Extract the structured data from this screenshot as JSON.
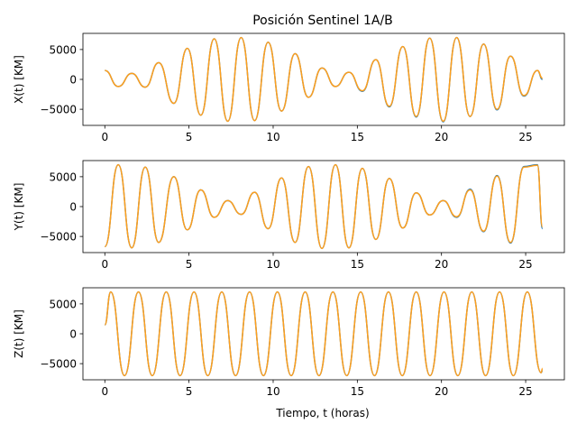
{
  "chart_data": {
    "type": "line",
    "title": "Posición Sentinel 1A/B",
    "xlabel": "Tiempo, t (horas)",
    "colors": {
      "series_a": "#1f77b4",
      "series_b": "#ff9f1c"
    },
    "panels": [
      {
        "ylabel": "X(t) [KM]",
        "xlim": [
          -1.3,
          27.3
        ],
        "ylim": [
          -7700,
          7700
        ],
        "xticks": [
          0,
          5,
          10,
          15,
          20,
          25
        ],
        "yticks": [
          5000,
          0,
          -5000
        ],
        "xtick_labels": [
          "0",
          "5",
          "10",
          "15",
          "20",
          "25"
        ],
        "ytick_labels": [
          "5000",
          "0",
          "−5000"
        ],
        "series": [
          {
            "x": [
              0,
              0.8,
              1.6,
              2.4,
              3.2,
              4.1,
              4.9,
              5.7,
              6.5,
              7.3,
              8.1,
              8.9,
              9.7,
              10.5,
              11.3,
              12.1,
              12.9,
              13.7,
              14.5,
              15.3,
              16.1,
              16.9,
              17.7,
              18.5,
              19.3,
              20.1,
              20.9,
              21.7,
              22.5,
              23.3,
              24.1,
              24.9,
              25.7,
              26.0
            ],
            "y": [
              1500,
              -1200,
              1000,
              -1300,
              2800,
              -4000,
              5200,
              -6000,
              6800,
              -7000,
              7000,
              -6900,
              6200,
              -5300,
              4300,
              -3000,
              1900,
              -1200,
              1200,
              -2000,
              3300,
              -4600,
              5500,
              -6300,
              6900,
              -7100,
              7000,
              -6200,
              5900,
              -5100,
              3900,
              -2800,
              1500,
              0
            ]
          },
          {
            "x": [
              0,
              0.8,
              1.6,
              2.4,
              3.2,
              4.1,
              4.9,
              5.7,
              6.5,
              7.3,
              8.1,
              8.9,
              9.7,
              10.5,
              11.3,
              12.1,
              12.9,
              13.7,
              14.5,
              15.3,
              16.1,
              16.9,
              17.7,
              18.5,
              19.3,
              20.1,
              20.9,
              21.7,
              22.5,
              23.3,
              24.1,
              24.9,
              25.7,
              26.0
            ],
            "y": [
              1500,
              -1200,
              1000,
              -1300,
              2800,
              -4000,
              5200,
              -6000,
              6800,
              -7000,
              7000,
              -6900,
              6200,
              -5300,
              4300,
              -3000,
              1900,
              -1200,
              1200,
              -1900,
              3300,
              -4500,
              5500,
              -6200,
              6900,
              -7000,
              7000,
              -6200,
              5900,
              -5000,
              3900,
              -2700,
              1500,
              200
            ]
          }
        ]
      },
      {
        "ylabel": "Y(t) [KM]",
        "xlim": [
          -1.3,
          27.3
        ],
        "ylim": [
          -7700,
          7700
        ],
        "xticks": [
          0,
          5,
          10,
          15,
          20,
          25
        ],
        "yticks": [
          5000,
          0,
          -5000
        ],
        "xtick_labels": [
          "0",
          "5",
          "10",
          "15",
          "20",
          "25"
        ],
        "ytick_labels": [
          "5000",
          "0",
          "−5000"
        ],
        "series": [
          {
            "x": [
              0,
              0.8,
              1.6,
              2.4,
              3.2,
              4.1,
              4.9,
              5.7,
              6.5,
              7.3,
              8.1,
              8.9,
              9.7,
              10.5,
              11.3,
              12.1,
              12.9,
              13.7,
              14.5,
              15.3,
              16.1,
              16.9,
              17.7,
              18.5,
              19.3,
              20.1,
              20.9,
              21.7,
              22.5,
              23.3,
              24.1,
              24.9,
              25.7,
              26.0
            ],
            "y": [
              -6700,
              7000,
              -6900,
              6600,
              -6000,
              5000,
              -3900,
              2800,
              -1800,
              1000,
              -1300,
              2400,
              -3700,
              4800,
              -6000,
              6700,
              -7000,
              7000,
              -6900,
              6400,
              -5500,
              4700,
              -3600,
              2300,
              -1400,
              1000,
              -1800,
              2900,
              -4200,
              5200,
              -6100,
              6700,
              7000,
              -3700
            ]
          },
          {
            "x": [
              0,
              0.8,
              1.6,
              2.4,
              3.2,
              4.1,
              4.9,
              5.7,
              6.5,
              7.3,
              8.1,
              8.9,
              9.7,
              10.5,
              11.3,
              12.1,
              12.9,
              13.7,
              14.5,
              15.3,
              16.1,
              16.9,
              17.7,
              18.5,
              19.3,
              20.1,
              20.9,
              21.7,
              22.5,
              23.3,
              24.1,
              24.9,
              25.7,
              26.0
            ],
            "y": [
              -6700,
              7000,
              -6900,
              6600,
              -6000,
              5000,
              -3900,
              2800,
              -1800,
              1000,
              -1300,
              2400,
              -3700,
              4800,
              -6000,
              6700,
              -7000,
              7000,
              -6900,
              6400,
              -5500,
              4700,
              -3600,
              2300,
              -1400,
              1000,
              -1700,
              2800,
              -4100,
              5100,
              -6000,
              6600,
              6900,
              -3400
            ]
          }
        ]
      },
      {
        "ylabel": "Z(t) [KM]",
        "xlim": [
          -1.3,
          27.3
        ],
        "ylim": [
          -7700,
          7700
        ],
        "xticks": [
          0,
          5,
          10,
          15,
          20,
          25
        ],
        "yticks": [
          5000,
          0,
          -5000
        ],
        "xtick_labels": [
          "0",
          "5",
          "10",
          "15",
          "20",
          "25"
        ],
        "ytick_labels": [
          "5000",
          "0",
          "−5000"
        ],
        "series": [
          {
            "x": [
              0,
              0.35,
              1.17,
              2.0,
              2.82,
              3.65,
              4.47,
              5.3,
              6.12,
              6.95,
              7.77,
              8.6,
              9.42,
              10.25,
              11.07,
              11.9,
              12.72,
              13.55,
              14.37,
              15.2,
              16.02,
              16.85,
              17.67,
              18.5,
              19.32,
              20.15,
              20.97,
              21.8,
              22.62,
              23.45,
              24.27,
              25.1,
              25.92,
              26.0
            ],
            "y": [
              1500,
              7000,
              -7000,
              7000,
              -7000,
              7000,
              -7000,
              7000,
              -7000,
              7000,
              -7000,
              7000,
              -7000,
              7000,
              -7000,
              7000,
              -7000,
              7000,
              -7000,
              7000,
              -7000,
              7000,
              -7000,
              7000,
              -7000,
              7000,
              -7000,
              7000,
              -7000,
              7000,
              -7000,
              7000,
              -6500,
              -6100
            ]
          },
          {
            "x": [
              0,
              0.35,
              1.17,
              2.0,
              2.82,
              3.65,
              4.47,
              5.3,
              6.12,
              6.95,
              7.77,
              8.6,
              9.42,
              10.25,
              11.07,
              11.9,
              12.72,
              13.55,
              14.37,
              15.2,
              16.02,
              16.85,
              17.67,
              18.5,
              19.32,
              20.15,
              20.97,
              21.8,
              22.62,
              23.45,
              24.27,
              25.1,
              25.92,
              26.0
            ],
            "y": [
              1500,
              7000,
              -7000,
              7000,
              -7000,
              7000,
              -7000,
              7000,
              -7000,
              7000,
              -7000,
              7000,
              -7000,
              7000,
              -7000,
              7000,
              -7000,
              7000,
              -7000,
              7000,
              -7000,
              7000,
              -7000,
              7000,
              -7000,
              7000,
              -7000,
              7000,
              -7000,
              7000,
              -7000,
              7000,
              -6500,
              -5800
            ]
          }
        ]
      }
    ]
  }
}
